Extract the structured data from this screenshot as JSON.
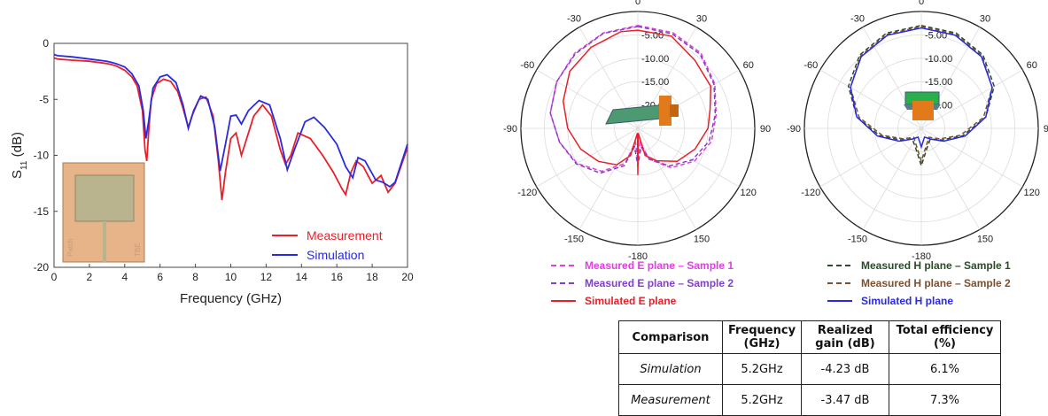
{
  "chart_data": [
    {
      "type": "line",
      "xlabel": "Frequency (GHz)",
      "ylabel_main": "S",
      "ylabel_sub": "11",
      "ylabel_unit": " (dB)",
      "xlim": [
        0,
        20
      ],
      "ylim": [
        -20,
        0
      ],
      "xticks": [
        0,
        2,
        4,
        6,
        8,
        10,
        12,
        14,
        16,
        18,
        20
      ],
      "yticks": [
        0,
        -5,
        -10,
        -15,
        -20
      ],
      "grid": false,
      "legend_position": "bottom-right",
      "inset_labels": [
        "Patch",
        "TBE"
      ],
      "series": [
        {
          "name": "Measurement",
          "color": "#e8202a",
          "points": [
            [
              0,
              -1.3
            ],
            [
              0.2,
              -1.4
            ],
            [
              1,
              -1.5
            ],
            [
              2,
              -1.6
            ],
            [
              3,
              -1.8
            ],
            [
              3.5,
              -2.0
            ],
            [
              4,
              -2.4
            ],
            [
              4.4,
              -3.0
            ],
            [
              4.7,
              -3.8
            ],
            [
              5.0,
              -6.0
            ],
            [
              5.15,
              -9.5
            ],
            [
              5.25,
              -10.5
            ],
            [
              5.35,
              -8.0
            ],
            [
              5.5,
              -5.0
            ],
            [
              5.8,
              -3.6
            ],
            [
              6.2,
              -3.2
            ],
            [
              6.6,
              -3.4
            ],
            [
              7.0,
              -4.3
            ],
            [
              7.3,
              -5.8
            ],
            [
              7.6,
              -7.5
            ],
            [
              7.8,
              -6.5
            ],
            [
              8.2,
              -5.0
            ],
            [
              8.6,
              -4.8
            ],
            [
              9.0,
              -6.5
            ],
            [
              9.3,
              -10.5
            ],
            [
              9.5,
              -14.0
            ],
            [
              9.7,
              -11.5
            ],
            [
              10.0,
              -8.5
            ],
            [
              10.3,
              -8.0
            ],
            [
              10.6,
              -10.0
            ],
            [
              10.9,
              -8.5
            ],
            [
              11.3,
              -6.5
            ],
            [
              11.8,
              -5.5
            ],
            [
              12.3,
              -6.5
            ],
            [
              12.8,
              -9.5
            ],
            [
              13.1,
              -10.8
            ],
            [
              13.4,
              -10.0
            ],
            [
              13.8,
              -8.0
            ],
            [
              14.5,
              -8.5
            ],
            [
              15.2,
              -10.0
            ],
            [
              15.8,
              -11.5
            ],
            [
              16.3,
              -13.0
            ],
            [
              16.5,
              -13.5
            ],
            [
              16.8,
              -11.5
            ],
            [
              17.1,
              -10.5
            ],
            [
              17.5,
              -11.0
            ],
            [
              18.0,
              -12.5
            ],
            [
              18.5,
              -11.8
            ],
            [
              18.9,
              -13.3
            ],
            [
              19.3,
              -12.5
            ],
            [
              20,
              -9.3
            ]
          ]
        },
        {
          "name": "Simulation",
          "color": "#2a2ae0",
          "points": [
            [
              0,
              -1.0
            ],
            [
              0.2,
              -1.1
            ],
            [
              1,
              -1.2
            ],
            [
              2,
              -1.4
            ],
            [
              3,
              -1.6
            ],
            [
              3.5,
              -1.8
            ],
            [
              4,
              -2.1
            ],
            [
              4.4,
              -2.7
            ],
            [
              4.8,
              -3.8
            ],
            [
              5.05,
              -6.0
            ],
            [
              5.2,
              -8.5
            ],
            [
              5.35,
              -7.0
            ],
            [
              5.6,
              -4.0
            ],
            [
              6.0,
              -3.0
            ],
            [
              6.4,
              -2.8
            ],
            [
              6.9,
              -3.5
            ],
            [
              7.3,
              -5.5
            ],
            [
              7.6,
              -7.6
            ],
            [
              7.9,
              -6.0
            ],
            [
              8.3,
              -4.7
            ],
            [
              8.7,
              -5.0
            ],
            [
              9.1,
              -7.5
            ],
            [
              9.4,
              -11.4
            ],
            [
              9.7,
              -9.0
            ],
            [
              10.0,
              -6.5
            ],
            [
              10.3,
              -6.4
            ],
            [
              10.6,
              -7.2
            ],
            [
              11.0,
              -6.0
            ],
            [
              11.6,
              -5.1
            ],
            [
              12.2,
              -5.5
            ],
            [
              12.8,
              -8.5
            ],
            [
              13.2,
              -11.3
            ],
            [
              13.6,
              -9.5
            ],
            [
              14.2,
              -7.0
            ],
            [
              14.7,
              -6.6
            ],
            [
              15.3,
              -7.5
            ],
            [
              16.0,
              -9.0
            ],
            [
              16.5,
              -11.0
            ],
            [
              16.9,
              -12.0
            ],
            [
              17.2,
              -10.2
            ],
            [
              17.6,
              -10.5
            ],
            [
              18.2,
              -12.2
            ],
            [
              18.6,
              -12.4
            ],
            [
              19.0,
              -12.8
            ],
            [
              19.3,
              -12.4
            ],
            [
              20,
              -9.0
            ]
          ]
        }
      ]
    },
    {
      "type": "polar",
      "angle_ticks": [
        "0",
        "30",
        "60",
        "90",
        "120",
        "150",
        "-180",
        "-150",
        "-120",
        "-90",
        "-60",
        "-30"
      ],
      "radial_ticks": [
        "-5.00",
        "-10.00",
        "-15.00",
        "-20.00"
      ],
      "rlim": [
        -25,
        0
      ],
      "series": [
        {
          "name": "Measured E plane – Sample 1",
          "color": "#e040e0",
          "dash": "dashed",
          "points": [
            [
              0,
              -3
            ],
            [
              20,
              -3.2
            ],
            [
              40,
              -4
            ],
            [
              60,
              -6
            ],
            [
              80,
              -8
            ],
            [
              100,
              -9
            ],
            [
              120,
              -11
            ],
            [
              140,
              -14
            ],
            [
              160,
              -18
            ],
            [
              170,
              -22
            ],
            [
              180,
              -18
            ],
            [
              190,
              -22
            ],
            [
              200,
              -17
            ],
            [
              220,
              -13
            ],
            [
              240,
              -10
            ],
            [
              260,
              -8
            ],
            [
              280,
              -6
            ],
            [
              300,
              -5
            ],
            [
              320,
              -4
            ],
            [
              340,
              -3.3
            ]
          ]
        },
        {
          "name": "Measured E plane – Sample 2",
          "color": "#8040c8",
          "dash": "dashed",
          "points": [
            [
              0,
              -3.2
            ],
            [
              20,
              -3.5
            ],
            [
              40,
              -4.3
            ],
            [
              60,
              -6.2
            ],
            [
              80,
              -8.2
            ],
            [
              100,
              -9.5
            ],
            [
              120,
              -11.5
            ],
            [
              140,
              -14.5
            ],
            [
              160,
              -18
            ],
            [
              170,
              -21
            ],
            [
              180,
              -17
            ],
            [
              190,
              -21
            ],
            [
              200,
              -16.5
            ],
            [
              220,
              -12.5
            ],
            [
              240,
              -9.8
            ],
            [
              260,
              -8
            ],
            [
              280,
              -6
            ],
            [
              300,
              -5
            ],
            [
              320,
              -4.2
            ],
            [
              340,
              -3.4
            ]
          ]
        },
        {
          "name": "Simulated E plane",
          "color": "#e8202a",
          "dash": "solid",
          "points": [
            [
              0,
              -4
            ],
            [
              20,
              -4
            ],
            [
              40,
              -6
            ],
            [
              60,
              -7
            ],
            [
              75,
              -9
            ],
            [
              90,
              -10
            ],
            [
              110,
              -12
            ],
            [
              130,
              -14
            ],
            [
              150,
              -17
            ],
            [
              165,
              -19
            ],
            [
              175,
              -24
            ],
            [
              180,
              -15
            ],
            [
              185,
              -24
            ],
            [
              195,
              -19
            ],
            [
              210,
              -16
            ],
            [
              230,
              -14
            ],
            [
              250,
              -12
            ],
            [
              270,
              -10
            ],
            [
              290,
              -8
            ],
            [
              310,
              -6
            ],
            [
              330,
              -5
            ],
            [
              350,
              -4
            ]
          ]
        }
      ]
    },
    {
      "type": "polar",
      "angle_ticks": [
        "0",
        "30",
        "60",
        "90",
        "120",
        "150",
        "-180",
        "-150",
        "-120",
        "-90",
        "-60",
        "-30"
      ],
      "radial_ticks": [
        "-5.00",
        "-10.00",
        "-15.00",
        "-20.00"
      ],
      "rlim": [
        -25,
        0
      ],
      "series": [
        {
          "name": "Measured H plane – Sample 1",
          "color": "#2a4a2a",
          "dash": "dashed",
          "points": [
            [
              0,
              -3
            ],
            [
              20,
              -3.3
            ],
            [
              40,
              -4.5
            ],
            [
              60,
              -7
            ],
            [
              80,
              -11
            ],
            [
              100,
              -16
            ],
            [
              120,
              -20
            ],
            [
              140,
              -22
            ],
            [
              160,
              -21
            ],
            [
              180,
              -17
            ],
            [
              200,
              -21
            ],
            [
              220,
              -22
            ],
            [
              240,
              -20
            ],
            [
              260,
              -16
            ],
            [
              280,
              -11
            ],
            [
              300,
              -7
            ],
            [
              320,
              -4.5
            ],
            [
              340,
              -3.3
            ]
          ]
        },
        {
          "name": "Measured H plane – Sample 2",
          "color": "#7a5030",
          "dash": "dashed",
          "points": [
            [
              0,
              -3.2
            ],
            [
              20,
              -3.6
            ],
            [
              40,
              -4.8
            ],
            [
              60,
              -7.5
            ],
            [
              80,
              -11.5
            ],
            [
              100,
              -16.5
            ],
            [
              120,
              -20.5
            ],
            [
              140,
              -22.5
            ],
            [
              160,
              -21.5
            ],
            [
              180,
              -18
            ],
            [
              200,
              -21.5
            ],
            [
              220,
              -22.5
            ],
            [
              240,
              -20.5
            ],
            [
              260,
              -16.5
            ],
            [
              280,
              -11.5
            ],
            [
              300,
              -7.5
            ],
            [
              320,
              -4.8
            ],
            [
              340,
              -3.6
            ]
          ]
        },
        {
          "name": "Simulated H plane",
          "color": "#2a2ae0",
          "dash": "solid",
          "points": [
            [
              0,
              -3.5
            ],
            [
              20,
              -3.8
            ],
            [
              40,
              -5
            ],
            [
              60,
              -7.5
            ],
            [
              80,
              -11
            ],
            [
              100,
              -15.5
            ],
            [
              120,
              -19.5
            ],
            [
              140,
              -22
            ],
            [
              160,
              -23
            ],
            [
              180,
              -21
            ],
            [
              200,
              -23
            ],
            [
              220,
              -22
            ],
            [
              240,
              -19.5
            ],
            [
              260,
              -15.5
            ],
            [
              280,
              -11
            ],
            [
              300,
              -7.5
            ],
            [
              320,
              -5
            ],
            [
              340,
              -3.8
            ]
          ]
        }
      ]
    },
    {
      "type": "table",
      "headers": [
        "Comparison",
        "Frequency (GHz)",
        "Realized gain (dB)",
        "Total efficiency (%)"
      ],
      "rows": [
        [
          "Simulation",
          "5.2GHz",
          "-4.23 dB",
          "6.1%"
        ],
        [
          "Measurement",
          "5.2GHz",
          "-3.47 dB",
          "7.3%"
        ]
      ]
    }
  ]
}
